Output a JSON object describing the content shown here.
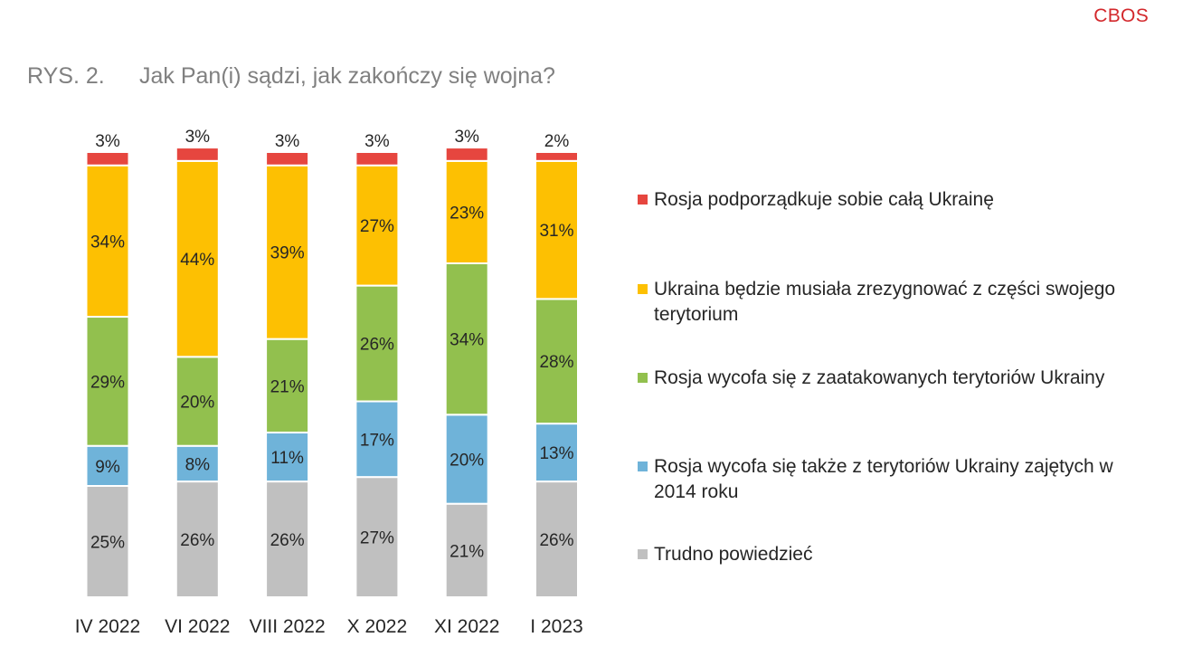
{
  "brand": "CBOS",
  "figure_label": "RYS. 2.",
  "title": "Jak Pan(i) sądzi, jak zakończy się wojna?",
  "chart_data": {
    "type": "bar",
    "stacked": true,
    "title": "Jak Pan(i) sądzi, jak zakończy się wojna?",
    "xlabel": "",
    "ylabel": "",
    "ylim": [
      0,
      100
    ],
    "grid": false,
    "legend_position": "right",
    "categories": [
      "IV 2022",
      "VI 2022",
      "VIII 2022",
      "X 2022",
      "XI 2022",
      "I 2023"
    ],
    "series": [
      {
        "name": "Trudno powiedzieć",
        "color": "#c0c0c0",
        "values": [
          25,
          26,
          26,
          27,
          21,
          26
        ],
        "labels": [
          "25%",
          "26%",
          "26%",
          "27%",
          "21%",
          "26%"
        ]
      },
      {
        "name": "Rosja wycofa się także z terytoriów Ukrainy zajętych w 2014 roku",
        "color": "#6fb3d9",
        "values": [
          9,
          8,
          11,
          17,
          20,
          13
        ],
        "labels": [
          "9%",
          "8%",
          "11%",
          "17%",
          "20%",
          "13%"
        ]
      },
      {
        "name": "Rosja wycofa się z zaatakowanych terytoriów Ukrainy",
        "color": "#92c04e",
        "values": [
          29,
          20,
          21,
          26,
          34,
          28
        ],
        "labels": [
          "29%",
          "20%",
          "21%",
          "26%",
          "34%",
          "28%"
        ]
      },
      {
        "name": "Ukraina będzie musiała zrezygnować z części swojego terytorium",
        "color": "#fdc002",
        "values": [
          34,
          44,
          39,
          27,
          23,
          31
        ],
        "labels": [
          "34%",
          "44%",
          "39%",
          "27%",
          "23%",
          "31%"
        ]
      },
      {
        "name": "Rosja podporządkuje sobie całą Ukrainę",
        "color": "#e6463f",
        "values": [
          3,
          3,
          3,
          3,
          3,
          2
        ],
        "labels": [
          "3%",
          "3%",
          "3%",
          "3%",
          "3%",
          "2%"
        ]
      }
    ]
  },
  "legend": [
    {
      "label": "Rosja podporządkuje sobie całą Ukrainę",
      "color": "#e6463f"
    },
    {
      "label": "Ukraina będzie musiała zrezygnować z części swojego terytorium",
      "color": "#fdc002"
    },
    {
      "label": "Rosja wycofa się z zaatakowanych terytoriów Ukrainy",
      "color": "#92c04e"
    },
    {
      "label": "Rosja wycofa się także z terytoriów Ukrainy zajętych w 2014 roku",
      "color": "#6fb3d9"
    },
    {
      "label": "Trudno powiedzieć",
      "color": "#c0c0c0"
    }
  ]
}
